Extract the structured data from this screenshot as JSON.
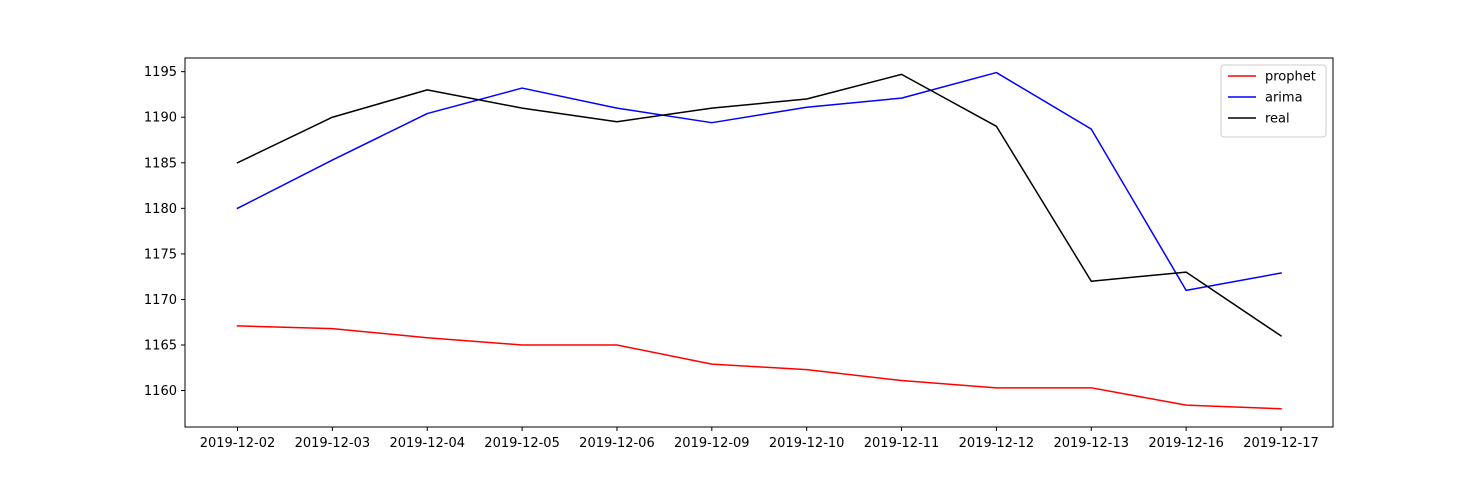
{
  "chart_data": {
    "type": "line",
    "title": "",
    "xlabel": "",
    "ylabel": "",
    "categories": [
      "2019-12-02",
      "2019-12-03",
      "2019-12-04",
      "2019-12-05",
      "2019-12-06",
      "2019-12-09",
      "2019-12-10",
      "2019-12-11",
      "2019-12-12",
      "2019-12-13",
      "2019-12-16",
      "2019-12-17"
    ],
    "ylim": [
      1156,
      1196.5
    ],
    "yticks": [
      1160,
      1165,
      1170,
      1175,
      1180,
      1185,
      1190,
      1195
    ],
    "grid": false,
    "legend_position": "top-right",
    "series": [
      {
        "name": "prophet",
        "color": "#ff0000",
        "values": [
          1167.1,
          1166.8,
          1165.8,
          1165.0,
          1165.0,
          1162.9,
          1162.3,
          1161.1,
          1160.3,
          1160.3,
          1158.4,
          1158.0
        ]
      },
      {
        "name": "arima",
        "color": "#0000ff",
        "values": [
          1180.0,
          1185.3,
          1190.4,
          1193.2,
          1191.0,
          1189.4,
          1191.1,
          1192.1,
          1194.9,
          1188.7,
          1171.0,
          1172.9
        ]
      },
      {
        "name": "real",
        "color": "#000000",
        "values": [
          1185.0,
          1190.0,
          1193.0,
          1191.0,
          1189.5,
          1191.0,
          1192.0,
          1194.7,
          1189.0,
          1172.0,
          1173.0,
          1166.0
        ]
      }
    ]
  }
}
